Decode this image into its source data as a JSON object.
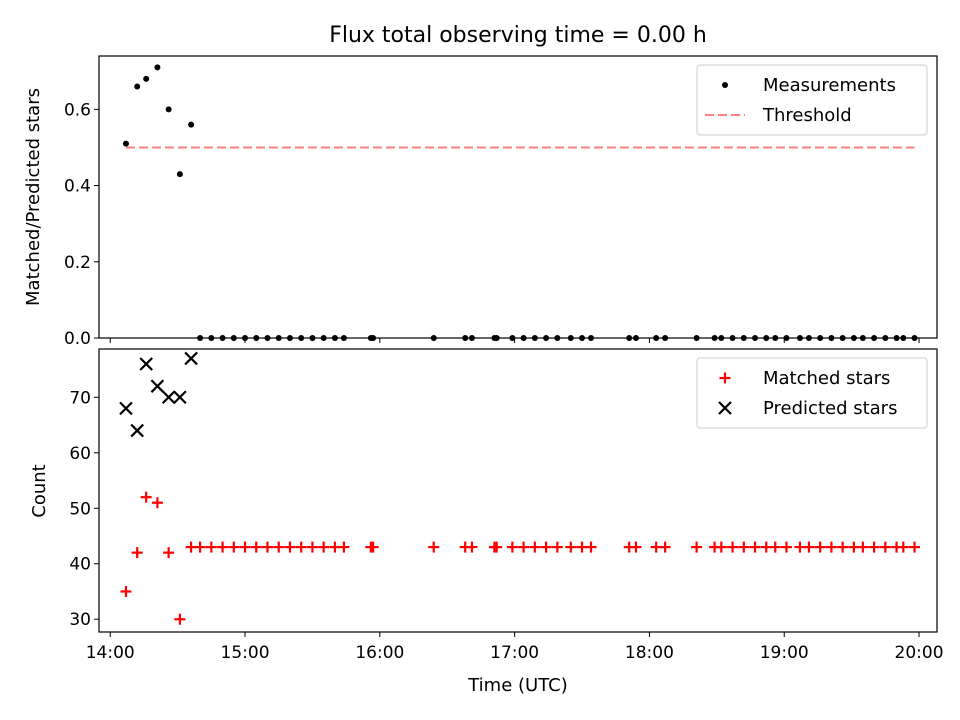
{
  "figure": {
    "title": "Flux total observing time = 0.00 h",
    "xlabel": "Time (UTC)"
  },
  "chart_data": [
    {
      "type": "scatter",
      "panel": "top",
      "ylabel": "Matched/Predicted stars",
      "ylim": [
        0,
        0.74
      ],
      "xlim": [
        "13:55",
        "20:08"
      ],
      "yticks": [
        {
          "value": 0.0,
          "label": "0.0"
        },
        {
          "value": 0.2,
          "label": "0.2"
        },
        {
          "value": 0.4,
          "label": "0.4"
        },
        {
          "value": 0.6,
          "label": "0.6"
        }
      ],
      "legend_position": "top-right",
      "series": [
        {
          "name": "Measurements",
          "kind": "points",
          "color": "#000000",
          "x": [
            "14:07",
            "14:12",
            "14:16",
            "14:21",
            "14:26",
            "14:31",
            "14:36",
            "14:40",
            "14:45",
            "14:50",
            "14:55",
            "15:00",
            "15:05",
            "15:10",
            "15:15",
            "15:20",
            "15:25",
            "15:30",
            "15:35",
            "15:40",
            "15:44",
            "15:56",
            "15:57",
            "16:24",
            "16:38",
            "16:41",
            "16:51",
            "16:52",
            "16:59",
            "17:04",
            "17:09",
            "17:14",
            "17:19",
            "17:25",
            "17:30",
            "17:34",
            "17:51",
            "17:54",
            "18:03",
            "18:07",
            "18:21",
            "18:29",
            "18:32",
            "18:37",
            "18:42",
            "18:47",
            "18:52",
            "18:56",
            "19:01",
            "19:07",
            "19:11",
            "19:16",
            "19:21",
            "19:26",
            "19:31",
            "19:35",
            "19:40",
            "19:45",
            "19:50",
            "19:53",
            "19:58"
          ],
          "y": [
            0.51,
            0.66,
            0.68,
            0.71,
            0.6,
            0.43,
            0.56,
            0,
            0,
            0,
            0,
            0,
            0,
            0,
            0,
            0,
            0,
            0,
            0,
            0,
            0,
            0,
            0,
            0,
            0,
            0,
            0,
            0,
            0,
            0,
            0,
            0,
            0,
            0,
            0,
            0,
            0,
            0,
            0,
            0,
            0,
            0,
            0,
            0,
            0,
            0,
            0,
            0,
            0,
            0,
            0,
            0,
            0,
            0,
            0,
            0,
            0,
            0,
            0,
            0,
            0
          ]
        },
        {
          "name": "Threshold",
          "kind": "dashed-line",
          "color": "#ff7f7f",
          "x": [
            "14:07",
            "19:58"
          ],
          "y": [
            0.5,
            0.5
          ]
        }
      ]
    },
    {
      "type": "scatter",
      "panel": "bottom",
      "ylabel": "Count",
      "ylim": [
        27.7,
        78.7
      ],
      "xlim": [
        "13:55",
        "20:08"
      ],
      "yticks": [
        {
          "value": 30,
          "label": "30"
        },
        {
          "value": 40,
          "label": "40"
        },
        {
          "value": 50,
          "label": "50"
        },
        {
          "value": 60,
          "label": "60"
        },
        {
          "value": 70,
          "label": "70"
        }
      ],
      "xticks": [
        {
          "value": "14:00",
          "label": "14:00"
        },
        {
          "value": "15:00",
          "label": "15:00"
        },
        {
          "value": "16:00",
          "label": "16:00"
        },
        {
          "value": "17:00",
          "label": "17:00"
        },
        {
          "value": "18:00",
          "label": "18:00"
        },
        {
          "value": "19:00",
          "label": "19:00"
        },
        {
          "value": "20:00",
          "label": "20:00"
        }
      ],
      "legend_position": "top-right",
      "series": [
        {
          "name": "Matched stars",
          "kind": "plus",
          "color": "#ff0000",
          "x": [
            "14:07",
            "14:12",
            "14:16",
            "14:21",
            "14:26",
            "14:31",
            "14:36",
            "14:40",
            "14:45",
            "14:50",
            "14:55",
            "15:00",
            "15:05",
            "15:10",
            "15:15",
            "15:20",
            "15:25",
            "15:30",
            "15:35",
            "15:40",
            "15:44",
            "15:56",
            "15:57",
            "16:24",
            "16:38",
            "16:41",
            "16:51",
            "16:52",
            "16:59",
            "17:04",
            "17:09",
            "17:14",
            "17:19",
            "17:25",
            "17:30",
            "17:34",
            "17:51",
            "17:54",
            "18:03",
            "18:07",
            "18:21",
            "18:29",
            "18:32",
            "18:37",
            "18:42",
            "18:47",
            "18:52",
            "18:56",
            "19:01",
            "19:07",
            "19:11",
            "19:16",
            "19:21",
            "19:26",
            "19:31",
            "19:35",
            "19:40",
            "19:45",
            "19:50",
            "19:53",
            "19:58"
          ],
          "y": [
            35,
            42,
            52,
            51,
            42,
            30,
            43,
            43,
            43,
            43,
            43,
            43,
            43,
            43,
            43,
            43,
            43,
            43,
            43,
            43,
            43,
            43,
            43,
            43,
            43,
            43,
            43,
            43,
            43,
            43,
            43,
            43,
            43,
            43,
            43,
            43,
            43,
            43,
            43,
            43,
            43,
            43,
            43,
            43,
            43,
            43,
            43,
            43,
            43,
            43,
            43,
            43,
            43,
            43,
            43,
            43,
            43,
            43,
            43,
            43,
            43
          ]
        },
        {
          "name": "Predicted stars",
          "kind": "x",
          "color": "#000000",
          "x": [
            "14:07",
            "14:12",
            "14:16",
            "14:21",
            "14:26",
            "14:31",
            "14:36"
          ],
          "y": [
            68,
            64,
            76,
            72,
            70,
            70,
            77
          ]
        }
      ]
    }
  ]
}
